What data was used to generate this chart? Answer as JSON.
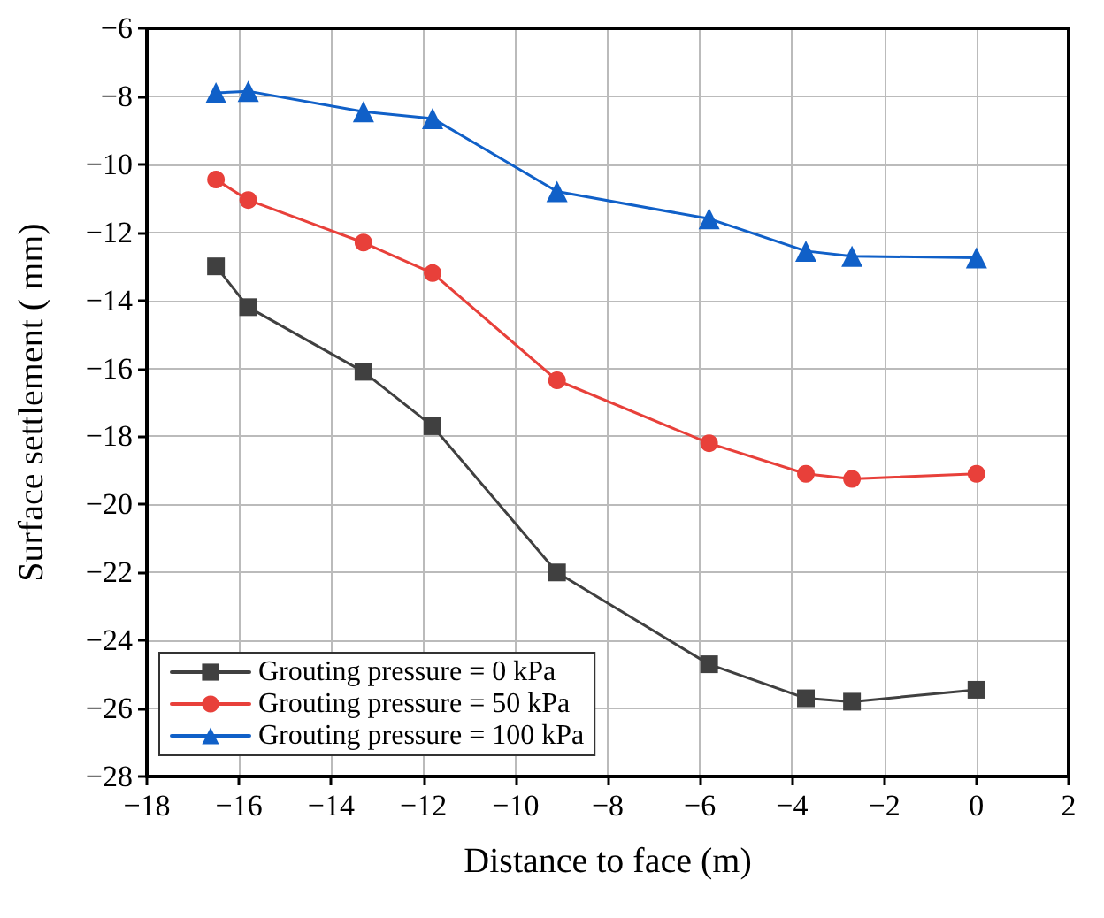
{
  "chart_data": {
    "type": "line",
    "xlabel": "Distance to face (m)",
    "ylabel": "Surface settlement ( mm)",
    "x": [
      -16.5,
      -15.8,
      -13.3,
      -11.8,
      -9.1,
      -5.8,
      -3.7,
      -2.7,
      0
    ],
    "series": [
      {
        "name": "Grouting pressure = 0 kPa",
        "color": "#404040",
        "marker": "square",
        "values": [
          -13.0,
          -14.2,
          -16.1,
          -17.7,
          -22.0,
          -24.7,
          -25.7,
          -25.8,
          -25.45
        ]
      },
      {
        "name": "Grouting pressure = 50 kPa",
        "color": "#e8403a",
        "marker": "circle",
        "values": [
          -10.45,
          -11.05,
          -12.3,
          -13.2,
          -16.35,
          -18.2,
          -19.1,
          -19.25,
          -19.1
        ]
      },
      {
        "name": "Grouting pressure = 100 kPa",
        "color": "#1060c8",
        "marker": "triangle",
        "values": [
          -7.9,
          -7.85,
          -8.45,
          -8.65,
          -10.8,
          -11.6,
          -12.55,
          -12.7,
          -12.75
        ]
      }
    ],
    "xlim": [
      -18,
      2
    ],
    "xticks": [
      -18,
      -16,
      -14,
      -12,
      -10,
      -8,
      -6,
      -4,
      -2,
      0,
      2
    ],
    "ylim": [
      -28,
      -6
    ],
    "yticks": [
      -28,
      -26,
      -24,
      -22,
      -20,
      -18,
      -16,
      -14,
      -12,
      -10,
      -8,
      -6
    ],
    "grid": true,
    "legend": "bottom left",
    "line_style": "solid"
  }
}
